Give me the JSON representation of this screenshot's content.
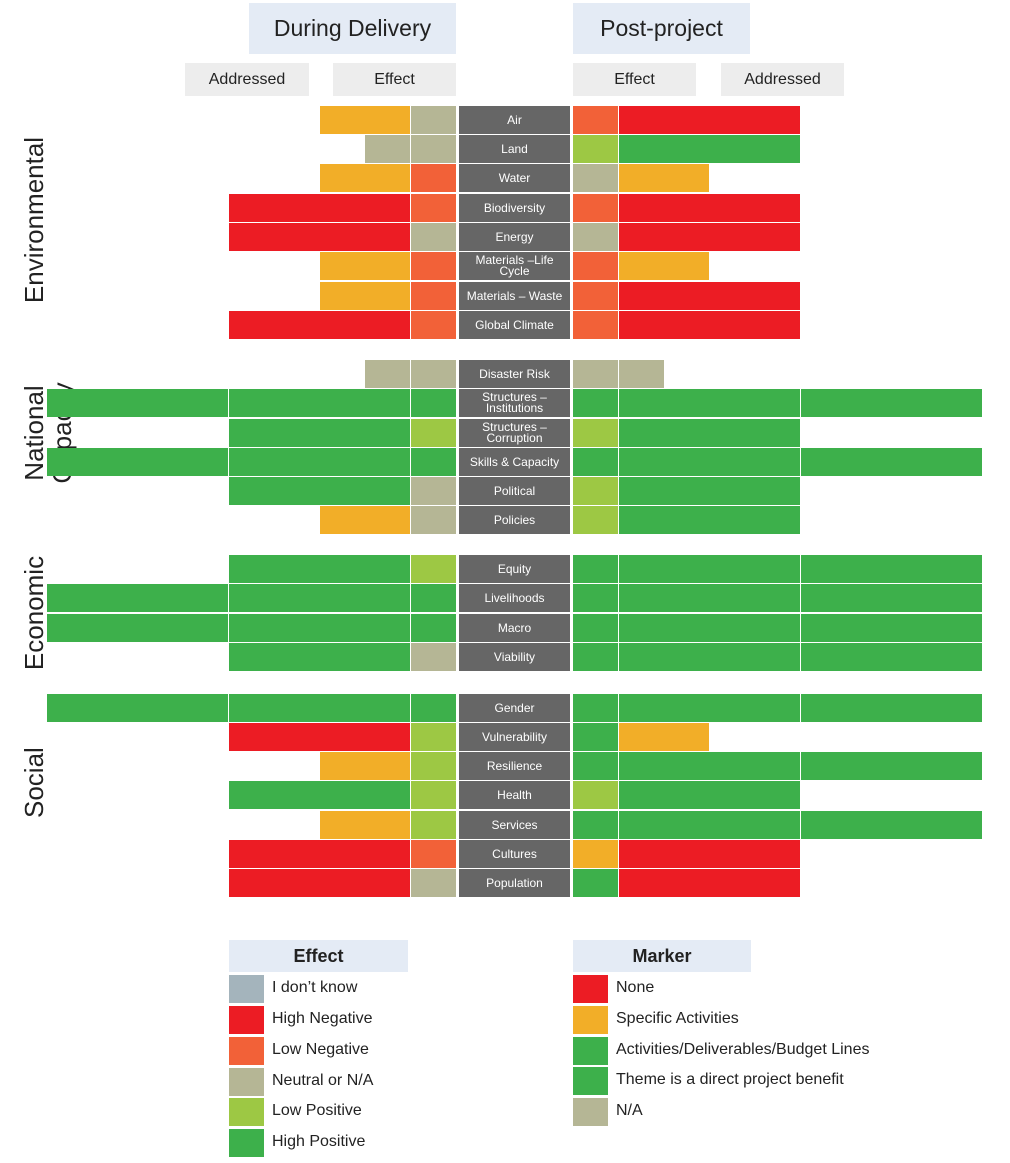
{
  "headers": {
    "during": "During Delivery",
    "post": "Post-project"
  },
  "subheaders": {
    "addressed_left": "Addressed",
    "effect_left": "Effect",
    "effect_right": "Effect",
    "addressed_right": "Addressed"
  },
  "groups": [
    "Environmental",
    "National Capacity",
    "Economic",
    "Social"
  ],
  "colors": {
    "dont_know": "#a4b4bc",
    "high_negative": "#ec1c24",
    "low_negative": "#f26138",
    "neutral": "#b5b695",
    "low_positive": "#9dc844",
    "high_positive": "#3db04b",
    "none": "#ec1c24",
    "specific": "#f2ae28",
    "activities": "#3db04b",
    "theme": "#3db04b",
    "na": "#b5b695"
  },
  "chart_data": {
    "type": "table",
    "columns": [
      "During Delivery – Addressed",
      "During Delivery – Effect",
      "Post-project – Effect",
      "Post-project – Addressed"
    ],
    "rows": [
      {
        "category": "Air",
        "group": "Environmental",
        "dd_addressed": "specific",
        "dd_addressed_len": 2,
        "dd_effect": "neutral",
        "pp_effect": "low_negative",
        "pp_addressed": "none",
        "pp_addressed_len": 4
      },
      {
        "category": "Land",
        "group": "Environmental",
        "dd_addressed": "na",
        "dd_addressed_len": 1,
        "dd_effect": "neutral",
        "pp_effect": "low_positive",
        "pp_addressed": "activities",
        "pp_addressed_len": 4
      },
      {
        "category": "Water",
        "group": "Environmental",
        "dd_addressed": "specific",
        "dd_addressed_len": 2,
        "dd_effect": "low_negative",
        "pp_effect": "neutral",
        "pp_addressed": "specific",
        "pp_addressed_len": 2
      },
      {
        "category": "Biodiversity",
        "group": "Environmental",
        "dd_addressed": "none",
        "dd_addressed_len": 4,
        "dd_effect": "low_negative",
        "pp_effect": "low_negative",
        "pp_addressed": "none",
        "pp_addressed_len": 4
      },
      {
        "category": "Energy",
        "group": "Environmental",
        "dd_addressed": "none",
        "dd_addressed_len": 4,
        "dd_effect": "neutral",
        "pp_effect": "neutral",
        "pp_addressed": "none",
        "pp_addressed_len": 4
      },
      {
        "category": "Materials –Life Cycle",
        "group": "Environmental",
        "dd_addressed": "specific",
        "dd_addressed_len": 2,
        "dd_effect": "low_negative",
        "pp_effect": "low_negative",
        "pp_addressed": "specific",
        "pp_addressed_len": 2
      },
      {
        "category": "Materials – Waste",
        "group": "Environmental",
        "dd_addressed": "specific",
        "dd_addressed_len": 2,
        "dd_effect": "low_negative",
        "pp_effect": "low_negative",
        "pp_addressed": "none",
        "pp_addressed_len": 4
      },
      {
        "category": "Global Climate",
        "group": "Environmental",
        "dd_addressed": "none",
        "dd_addressed_len": 4,
        "dd_effect": "low_negative",
        "pp_effect": "low_negative",
        "pp_addressed": "none",
        "pp_addressed_len": 4
      },
      {
        "category": "Disaster Risk",
        "group": "National Capacity",
        "dd_addressed": "na",
        "dd_addressed_len": 1,
        "dd_effect": "neutral",
        "pp_effect": "neutral",
        "pp_addressed": "na",
        "pp_addressed_len": 1
      },
      {
        "category": "Structures – Institutions",
        "group": "National Capacity",
        "dd_addressed": "theme",
        "dd_addressed_len": 8,
        "dd_effect": "high_positive",
        "pp_effect": "high_positive",
        "pp_addressed": "theme",
        "pp_addressed_len": 8
      },
      {
        "category": "Structures – Corruption",
        "group": "National Capacity",
        "dd_addressed": "activities",
        "dd_addressed_len": 4,
        "dd_effect": "low_positive",
        "pp_effect": "low_positive",
        "pp_addressed": "activities",
        "pp_addressed_len": 4
      },
      {
        "category": "Skills & Capacity",
        "group": "National Capacity",
        "dd_addressed": "theme",
        "dd_addressed_len": 8,
        "dd_effect": "high_positive",
        "pp_effect": "high_positive",
        "pp_addressed": "theme",
        "pp_addressed_len": 8
      },
      {
        "category": "Political",
        "group": "National Capacity",
        "dd_addressed": "activities",
        "dd_addressed_len": 4,
        "dd_effect": "neutral",
        "pp_effect": "low_positive",
        "pp_addressed": "activities",
        "pp_addressed_len": 4
      },
      {
        "category": "Policies",
        "group": "National Capacity",
        "dd_addressed": "specific",
        "dd_addressed_len": 2,
        "dd_effect": "neutral",
        "pp_effect": "low_positive",
        "pp_addressed": "activities",
        "pp_addressed_len": 4
      },
      {
        "category": "Equity",
        "group": "Economic",
        "dd_addressed": "activities",
        "dd_addressed_len": 4,
        "dd_effect": "low_positive",
        "pp_effect": "high_positive",
        "pp_addressed": "theme",
        "pp_addressed_len": 8
      },
      {
        "category": "Livelihoods",
        "group": "Economic",
        "dd_addressed": "theme",
        "dd_addressed_len": 8,
        "dd_effect": "high_positive",
        "pp_effect": "high_positive",
        "pp_addressed": "theme",
        "pp_addressed_len": 8
      },
      {
        "category": "Macro",
        "group": "Economic",
        "dd_addressed": "theme",
        "dd_addressed_len": 8,
        "dd_effect": "high_positive",
        "pp_effect": "high_positive",
        "pp_addressed": "theme",
        "pp_addressed_len": 8
      },
      {
        "category": "Viability",
        "group": "Economic",
        "dd_addressed": "activities",
        "dd_addressed_len": 4,
        "dd_effect": "neutral",
        "pp_effect": "high_positive",
        "pp_addressed": "theme",
        "pp_addressed_len": 8
      },
      {
        "category": "Gender",
        "group": "Social",
        "dd_addressed": "theme",
        "dd_addressed_len": 8,
        "dd_effect": "high_positive",
        "pp_effect": "high_positive",
        "pp_addressed": "theme",
        "pp_addressed_len": 8
      },
      {
        "category": "Vulnerability",
        "group": "Social",
        "dd_addressed": "none",
        "dd_addressed_len": 4,
        "dd_effect": "low_positive",
        "pp_effect": "high_positive",
        "pp_addressed": "specific",
        "pp_addressed_len": 2
      },
      {
        "category": "Resilience",
        "group": "Social",
        "dd_addressed": "specific",
        "dd_addressed_len": 2,
        "dd_effect": "low_positive",
        "pp_effect": "high_positive",
        "pp_addressed": "theme",
        "pp_addressed_len": 8
      },
      {
        "category": "Health",
        "group": "Social",
        "dd_addressed": "activities",
        "dd_addressed_len": 4,
        "dd_effect": "low_positive",
        "pp_effect": "low_positive",
        "pp_addressed": "activities",
        "pp_addressed_len": 4
      },
      {
        "category": "Services",
        "group": "Social",
        "dd_addressed": "specific",
        "dd_addressed_len": 2,
        "dd_effect": "low_positive",
        "pp_effect": "high_positive",
        "pp_addressed": "theme",
        "pp_addressed_len": 8
      },
      {
        "category": "Cultures",
        "group": "Social",
        "dd_addressed": "none",
        "dd_addressed_len": 4,
        "dd_effect": "low_negative",
        "pp_effect": "specific",
        "pp_addressed": "none",
        "pp_addressed_len": 4
      },
      {
        "category": "Population",
        "group": "Social",
        "dd_addressed": "none",
        "dd_addressed_len": 4,
        "dd_effect": "neutral",
        "pp_effect": "high_positive",
        "pp_addressed": "none",
        "pp_addressed_len": 4
      }
    ]
  },
  "legend_effect": {
    "title": "Effect",
    "items": [
      {
        "label": "I don’t know",
        "color": "dont_know"
      },
      {
        "label": "High Negative",
        "color": "high_negative"
      },
      {
        "label": "Low Negative",
        "color": "low_negative"
      },
      {
        "label": "Neutral or N/A",
        "color": "neutral"
      },
      {
        "label": "Low Positive",
        "color": "low_positive"
      },
      {
        "label": "High Positive",
        "color": "high_positive"
      }
    ]
  },
  "legend_marker": {
    "title": "Marker",
    "items": [
      {
        "label": "None",
        "color": "none"
      },
      {
        "label": "Specific Activities",
        "color": "specific"
      },
      {
        "label": "Activities/Deliverables/Budget Lines",
        "color": "activities"
      },
      {
        "label": "Theme is a direct project benefit",
        "color": "theme"
      },
      {
        "label": "N/A",
        "color": "na"
      }
    ]
  }
}
